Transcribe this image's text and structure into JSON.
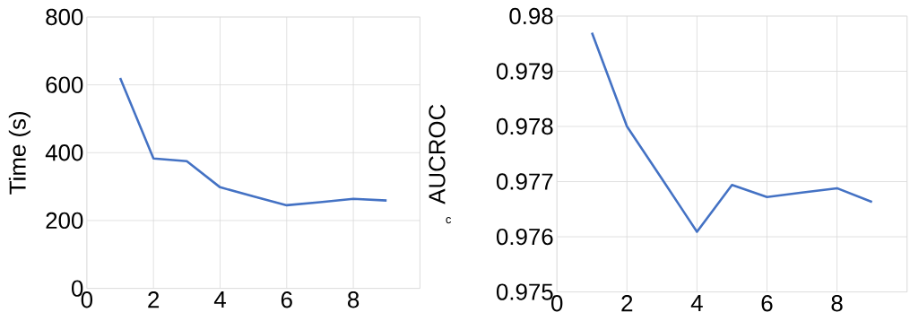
{
  "chart_data": [
    {
      "type": "line",
      "ylabel": "Time (s)",
      "x": [
        1,
        2,
        3,
        4,
        5,
        6,
        7,
        8,
        9
      ],
      "xlim": [
        0,
        10
      ],
      "xticks": [
        0,
        2,
        4,
        6,
        8
      ],
      "ylim": [
        0,
        800
      ],
      "yticks": [
        0,
        200,
        400,
        600,
        800
      ],
      "grid": true,
      "marker": "none",
      "series": [
        {
          "color": "#4472c4",
          "values": [
            620,
            383,
            375,
            298,
            271,
            245,
            254,
            264,
            259
          ]
        }
      ]
    },
    {
      "type": "line",
      "ylabel": "AUCROC",
      "annotations": [
        "c"
      ],
      "x": [
        1,
        2,
        3,
        4,
        5,
        6,
        7,
        8,
        9
      ],
      "xlim": [
        0,
        10
      ],
      "xticks": [
        0,
        2,
        4,
        6,
        8
      ],
      "ylim": [
        0.975,
        0.98
      ],
      "yticks": [
        0.975,
        0.976,
        0.977,
        0.978,
        0.979,
        0.98
      ],
      "grid": true,
      "marker": "none",
      "series": [
        {
          "color": "#4472c4",
          "values": [
            0.9797,
            0.978,
            0.97705,
            0.97609,
            0.97694,
            0.97672,
            0.9768,
            0.97688,
            0.97663
          ]
        }
      ]
    }
  ]
}
